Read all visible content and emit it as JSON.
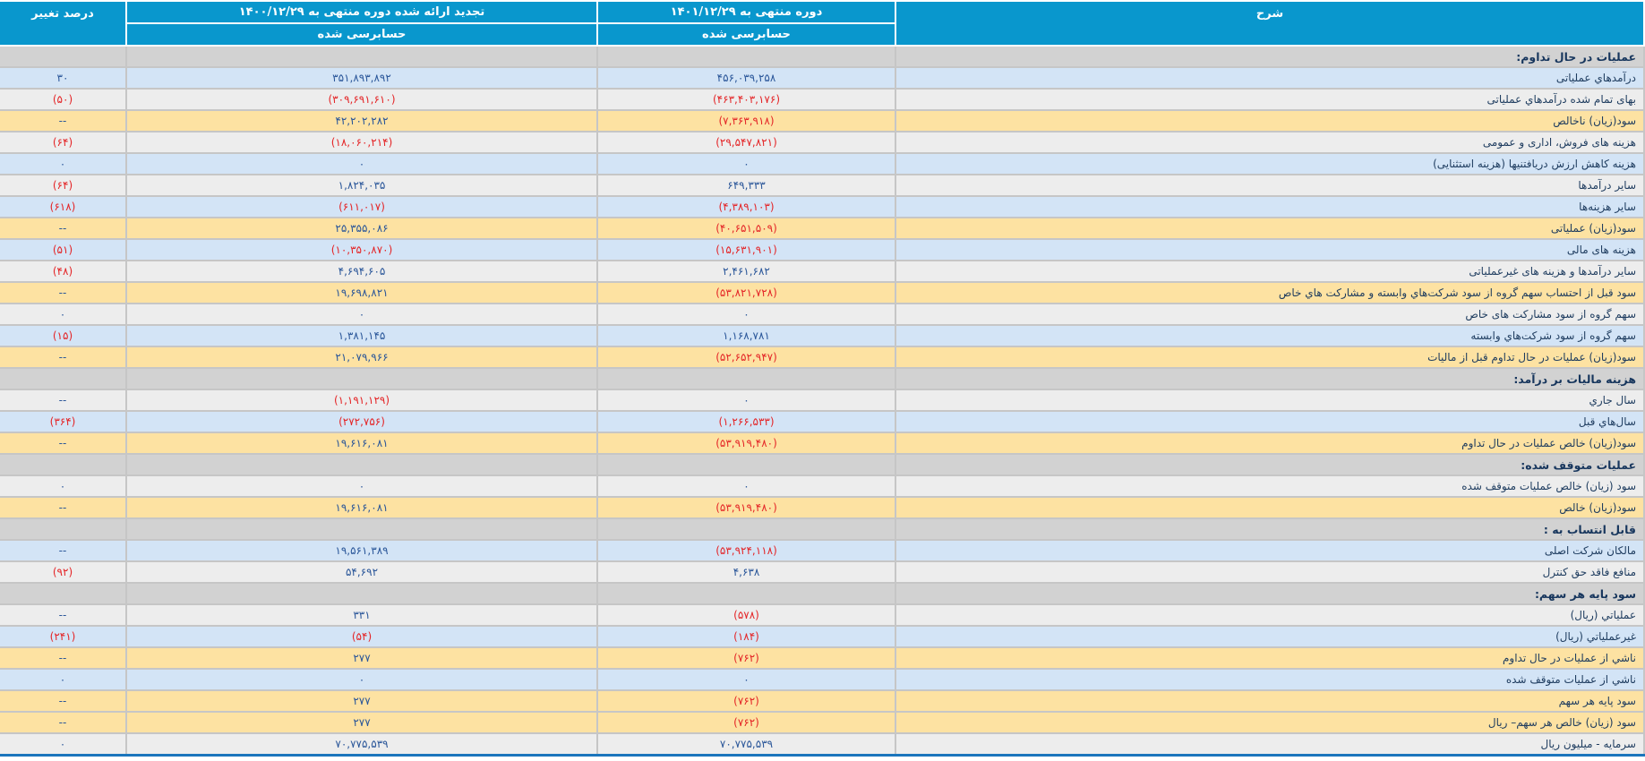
{
  "colors": {
    "header_bg": "#0997cd",
    "header_text": "#ffffff",
    "section_row_bg": "#d2d2d2",
    "row_blue_bg": "#d3e4f6",
    "row_gray_bg": "#ededed",
    "row_yellow_bg": "#fde2a2",
    "negative_value": "#e42527",
    "positive_value": "#2a5699",
    "description_text": "#1e3c5f",
    "bottom_border": "#1b75bc"
  },
  "header": {
    "description": "شرح",
    "current_period": "دوره منتهی به ۱۴۰۱/۱۲/۲۹",
    "restated_period": "تجدید ارائه شده دوره منتهی به ۱۴۰۰/۱۲/۲۹",
    "audited_current": "حسابرسی شده",
    "audited_prior": "حسابرسی شده",
    "change_percent": "درصد تغییر"
  },
  "rows": [
    {
      "type": "section",
      "label": "عملیات در حال تداوم:"
    },
    {
      "type": "data",
      "bg": "blue",
      "label": "درآمدهاي عملیاتی",
      "current": "۴۵۶,۰۳۹,۲۵۸",
      "prior": "۳۵۱,۸۹۳,۸۹۲",
      "change": "۳۰"
    },
    {
      "type": "data",
      "bg": "gray",
      "label": "بهای تمام شده درآمدهاي عملیاتی",
      "current": "(۴۶۳,۴۰۳,۱۷۶)",
      "prior": "(۳۰۹,۶۹۱,۶۱۰)",
      "change": "(۵۰)"
    },
    {
      "type": "data",
      "bg": "yellow",
      "label": "سود(زیان) ناخالص",
      "current": "(۷,۳۶۳,۹۱۸)",
      "prior": "۴۲,۲۰۲,۲۸۲",
      "change": "--"
    },
    {
      "type": "data",
      "bg": "gray",
      "label": "هزینه های فروش، اداری و عمومی",
      "current": "(۲۹,۵۴۷,۸۲۱)",
      "prior": "(۱۸,۰۶۰,۲۱۴)",
      "change": "(۶۴)"
    },
    {
      "type": "data",
      "bg": "blue",
      "label": "هزینه کاهش ارزش دریافتنیها (هزینه استثنایی)",
      "current": "۰",
      "prior": "۰",
      "change": "۰"
    },
    {
      "type": "data",
      "bg": "gray",
      "label": "سایر درآمدها",
      "current": "۶۴۹,۳۳۳",
      "prior": "۱,۸۲۴,۰۳۵",
      "change": "(۶۴)"
    },
    {
      "type": "data",
      "bg": "blue",
      "label": "سایر هزینه‌ها",
      "current": "(۴,۳۸۹,۱۰۳)",
      "prior": "(۶۱۱,۰۱۷)",
      "change": "(۶۱۸)"
    },
    {
      "type": "data",
      "bg": "yellow",
      "label": "سود(زیان) عملیاتی",
      "current": "(۴۰,۶۵۱,۵۰۹)",
      "prior": "۲۵,۳۵۵,۰۸۶",
      "change": "--"
    },
    {
      "type": "data",
      "bg": "blue",
      "label": "هزینه های مالی",
      "current": "(۱۵,۶۳۱,۹۰۱)",
      "prior": "(۱۰,۳۵۰,۸۷۰)",
      "change": "(۵۱)"
    },
    {
      "type": "data",
      "bg": "gray",
      "label": "سایر درآمدها و هزینه های غیرعملیاتی",
      "current": "۲,۴۶۱,۶۸۲",
      "prior": "۴,۶۹۴,۶۰۵",
      "change": "(۴۸)"
    },
    {
      "type": "data",
      "bg": "yellow",
      "label": "سود قبل از احتساب سهم گروه از سود شرکت‌هاي وابسته و مشارکت هاي خاص",
      "current": "(۵۳,۸۲۱,۷۲۸)",
      "prior": "۱۹,۶۹۸,۸۲۱",
      "change": "--"
    },
    {
      "type": "data",
      "bg": "gray",
      "label": "سهم گروه از سود مشارکت های خاص",
      "current": "۰",
      "prior": "۰",
      "change": "۰"
    },
    {
      "type": "data",
      "bg": "blue",
      "label": "سهم گروه از سود شرکت‌هاي وابسته",
      "current": "۱,۱۶۸,۷۸۱",
      "prior": "۱,۳۸۱,۱۴۵",
      "change": "(۱۵)"
    },
    {
      "type": "data",
      "bg": "yellow",
      "label": "سود(زیان) عملیات در حال تداوم قبل از مالیات",
      "current": "(۵۲,۶۵۲,۹۴۷)",
      "prior": "۲۱,۰۷۹,۹۶۶",
      "change": "--"
    },
    {
      "type": "section",
      "label": "هزینه مالیات بر درآمد:"
    },
    {
      "type": "data",
      "bg": "gray",
      "label": "سال جاري",
      "current": "۰",
      "prior": "(۱,۱۹۱,۱۲۹)",
      "change": "--"
    },
    {
      "type": "data",
      "bg": "blue",
      "label": "سال‌هاي قبل",
      "current": "(۱,۲۶۶,۵۳۳)",
      "prior": "(۲۷۲,۷۵۶)",
      "change": "(۳۶۴)"
    },
    {
      "type": "data",
      "bg": "yellow",
      "label": "سود(زیان) خالص عملیات در حال تداوم",
      "current": "(۵۳,۹۱۹,۴۸۰)",
      "prior": "۱۹,۶۱۶,۰۸۱",
      "change": "--"
    },
    {
      "type": "section",
      "label": "عملیات متوقف شده:"
    },
    {
      "type": "data",
      "bg": "gray",
      "label": "سود (زیان) خالص عملیات متوقف شده",
      "current": "۰",
      "prior": "۰",
      "change": "۰"
    },
    {
      "type": "data",
      "bg": "yellow",
      "label": "سود(زیان) خالص",
      "current": "(۵۳,۹۱۹,۴۸۰)",
      "prior": "۱۹,۶۱۶,۰۸۱",
      "change": "--"
    },
    {
      "type": "section",
      "label": "قابل انتساب به :"
    },
    {
      "type": "data",
      "bg": "blue",
      "label": "مالکان شرکت اصلی",
      "current": "(۵۳,۹۲۴,۱۱۸)",
      "prior": "۱۹,۵۶۱,۳۸۹",
      "change": "--"
    },
    {
      "type": "data",
      "bg": "gray",
      "label": "منافع فاقد حق کنترل",
      "current": "۴,۶۳۸",
      "prior": "۵۴,۶۹۲",
      "change": "(۹۲)"
    },
    {
      "type": "section",
      "label": "سود پایه هر سهم:"
    },
    {
      "type": "data",
      "bg": "gray",
      "label": "عملیاتي (ریال)",
      "current": "(۵۷۸)",
      "prior": "۳۳۱",
      "change": "--"
    },
    {
      "type": "data",
      "bg": "blue",
      "label": "غیرعملیاتي (ریال)",
      "current": "(۱۸۴)",
      "prior": "(۵۴)",
      "change": "(۲۴۱)"
    },
    {
      "type": "data",
      "bg": "yellow",
      "label": "ناشي از عملیات در حال تداوم",
      "current": "(۷۶۲)",
      "prior": "۲۷۷",
      "change": "--"
    },
    {
      "type": "data",
      "bg": "blue",
      "label": "ناشي از عملیات متوقف شده",
      "current": "۰",
      "prior": "۰",
      "change": "۰"
    },
    {
      "type": "data",
      "bg": "yellow",
      "label": "سود پایه هر سهم",
      "current": "(۷۶۲)",
      "prior": "۲۷۷",
      "change": "--"
    },
    {
      "type": "data",
      "bg": "yellow",
      "label": "سود (زیان) خالص هر سهم– ریال",
      "current": "(۷۶۲)",
      "prior": "۲۷۷",
      "change": "--"
    },
    {
      "type": "data",
      "bg": "gray",
      "label": "سرمایه - میلیون ریال",
      "current": "۷۰,۷۷۵,۵۳۹",
      "prior": "۷۰,۷۷۵,۵۳۹",
      "change": "۰"
    }
  ]
}
